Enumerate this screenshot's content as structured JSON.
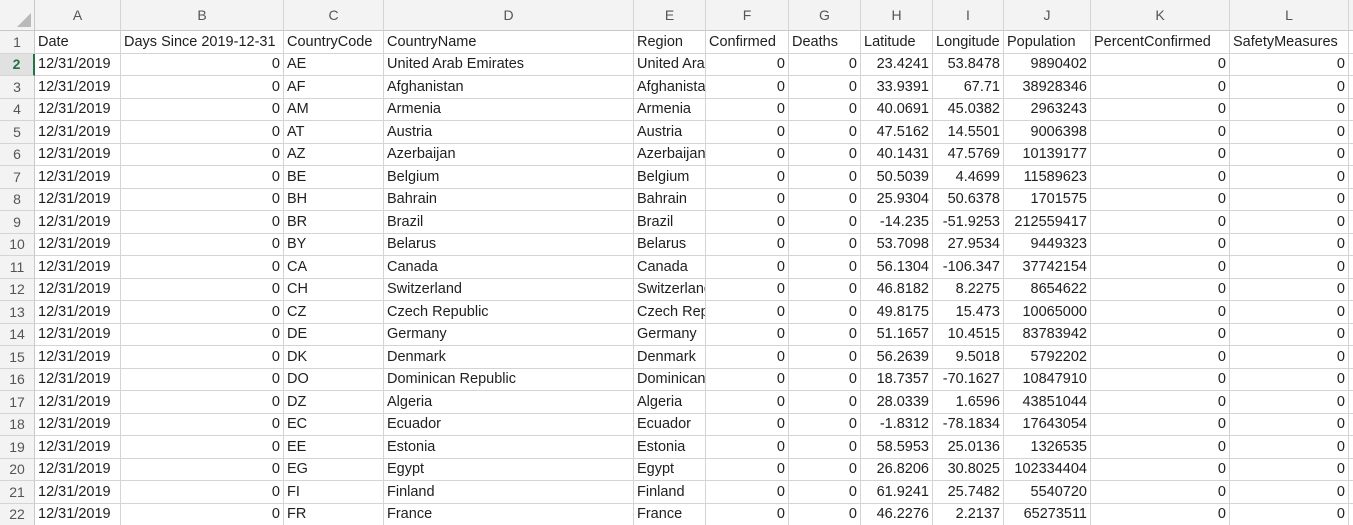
{
  "columns": [
    "A",
    "B",
    "C",
    "D",
    "E",
    "F",
    "G",
    "H",
    "I",
    "J",
    "K",
    "L",
    ""
  ],
  "rownums": [
    "1",
    "2",
    "3",
    "4",
    "5",
    "6",
    "7",
    "8",
    "9",
    "10",
    "11",
    "12",
    "13",
    "14",
    "15",
    "16",
    "17",
    "18",
    "19",
    "20",
    "21",
    "22"
  ],
  "active_row": "2",
  "headers": [
    "Date",
    "Days Since 2019-12-31",
    "CountryCode",
    "CountryName",
    "Region",
    "Confirmed",
    "Deaths",
    "Latitude",
    "Longitude",
    "Population",
    "PercentConfirmed",
    "SafetyMeasures",
    ""
  ],
  "rows": [
    [
      "12/31/2019",
      "0",
      "AE",
      "United Arab Emirates",
      "United Arab Emirates",
      "0",
      "0",
      "23.4241",
      "53.8478",
      "9890402",
      "0",
      "0"
    ],
    [
      "12/31/2019",
      "0",
      "AF",
      "Afghanistan",
      "Afghanistan",
      "0",
      "0",
      "33.9391",
      "67.71",
      "38928346",
      "0",
      "0"
    ],
    [
      "12/31/2019",
      "0",
      "AM",
      "Armenia",
      "Armenia",
      "0",
      "0",
      "40.0691",
      "45.0382",
      "2963243",
      "0",
      "0"
    ],
    [
      "12/31/2019",
      "0",
      "AT",
      "Austria",
      "Austria",
      "0",
      "0",
      "47.5162",
      "14.5501",
      "9006398",
      "0",
      "0"
    ],
    [
      "12/31/2019",
      "0",
      "AZ",
      "Azerbaijan",
      "Azerbaijan",
      "0",
      "0",
      "40.1431",
      "47.5769",
      "10139177",
      "0",
      "0"
    ],
    [
      "12/31/2019",
      "0",
      "BE",
      "Belgium",
      "Belgium",
      "0",
      "0",
      "50.5039",
      "4.4699",
      "11589623",
      "0",
      "0"
    ],
    [
      "12/31/2019",
      "0",
      "BH",
      "Bahrain",
      "Bahrain",
      "0",
      "0",
      "25.9304",
      "50.6378",
      "1701575",
      "0",
      "0"
    ],
    [
      "12/31/2019",
      "0",
      "BR",
      "Brazil",
      "Brazil",
      "0",
      "0",
      "-14.235",
      "-51.9253",
      "212559417",
      "0",
      "0"
    ],
    [
      "12/31/2019",
      "0",
      "BY",
      "Belarus",
      "Belarus",
      "0",
      "0",
      "53.7098",
      "27.9534",
      "9449323",
      "0",
      "0"
    ],
    [
      "12/31/2019",
      "0",
      "CA",
      "Canada",
      "Canada",
      "0",
      "0",
      "56.1304",
      "-106.347",
      "37742154",
      "0",
      "0"
    ],
    [
      "12/31/2019",
      "0",
      "CH",
      "Switzerland",
      "Switzerland",
      "0",
      "0",
      "46.8182",
      "8.2275",
      "8654622",
      "0",
      "0"
    ],
    [
      "12/31/2019",
      "0",
      "CZ",
      "Czech Republic",
      "Czech Republic",
      "0",
      "0",
      "49.8175",
      "15.473",
      "10065000",
      "0",
      "0"
    ],
    [
      "12/31/2019",
      "0",
      "DE",
      "Germany",
      "Germany",
      "0",
      "0",
      "51.1657",
      "10.4515",
      "83783942",
      "0",
      "0"
    ],
    [
      "12/31/2019",
      "0",
      "DK",
      "Denmark",
      "Denmark",
      "0",
      "0",
      "56.2639",
      "9.5018",
      "5792202",
      "0",
      "0"
    ],
    [
      "12/31/2019",
      "0",
      "DO",
      "Dominican Republic",
      "Dominican Republic",
      "0",
      "0",
      "18.7357",
      "-70.1627",
      "10847910",
      "0",
      "0"
    ],
    [
      "12/31/2019",
      "0",
      "DZ",
      "Algeria",
      "Algeria",
      "0",
      "0",
      "28.0339",
      "1.6596",
      "43851044",
      "0",
      "0"
    ],
    [
      "12/31/2019",
      "0",
      "EC",
      "Ecuador",
      "Ecuador",
      "0",
      "0",
      "-1.8312",
      "-78.1834",
      "17643054",
      "0",
      "0"
    ],
    [
      "12/31/2019",
      "0",
      "EE",
      "Estonia",
      "Estonia",
      "0",
      "0",
      "58.5953",
      "25.0136",
      "1326535",
      "0",
      "0"
    ],
    [
      "12/31/2019",
      "0",
      "EG",
      "Egypt",
      "Egypt",
      "0",
      "0",
      "26.8206",
      "30.8025",
      "102334404",
      "0",
      "0"
    ],
    [
      "12/31/2019",
      "0",
      "FI",
      "Finland",
      "Finland",
      "0",
      "0",
      "61.9241",
      "25.7482",
      "5540720",
      "0",
      "0"
    ],
    [
      "12/31/2019",
      "0",
      "FR",
      "France",
      "France",
      "0",
      "0",
      "46.2276",
      "2.2137",
      "65273511",
      "0",
      "0"
    ]
  ]
}
